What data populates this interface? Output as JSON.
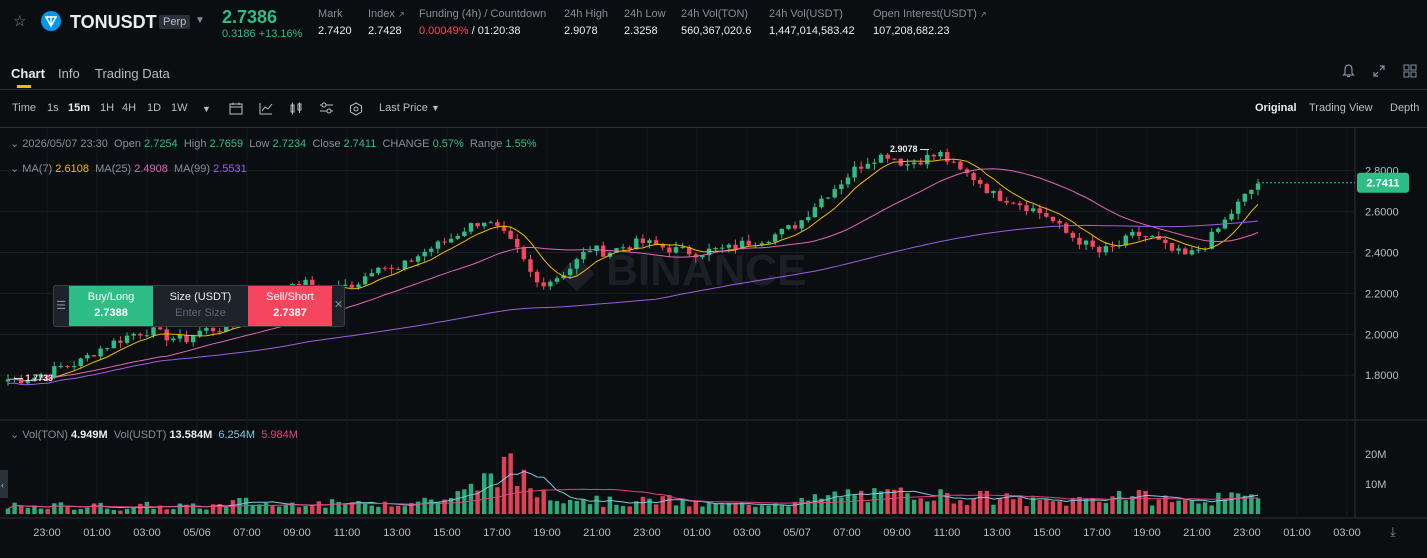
{
  "header": {
    "symbol": "TONUSDT",
    "badge": "Perp",
    "last_price": "2.7386",
    "change": "0.3186 +13.16%",
    "stats": [
      {
        "label": "Mark",
        "value": "2.7420"
      },
      {
        "label": "Index",
        "value": "2.7428"
      },
      {
        "label": "Funding (4h) / Countdown",
        "value_funding": "0.00049%",
        "value_countdown": "/ 01:20:38"
      },
      {
        "label": "24h High",
        "value": "2.9078"
      },
      {
        "label": "24h Low",
        "value": "2.3258"
      },
      {
        "label": "24h Vol(TON)",
        "value": "560,367,020.6"
      },
      {
        "label": "24h Vol(USDT)",
        "value": "1,447,014,583.42"
      },
      {
        "label": "Open Interest(USDT)",
        "value": "107,208,682.23"
      }
    ]
  },
  "tabs": [
    "Chart",
    "Info",
    "Trading Data"
  ],
  "toolbar": {
    "intervals": [
      "Time",
      "1s",
      "15m",
      "1H",
      "4H",
      "1D",
      "1W"
    ],
    "active_interval": "15m",
    "price_type": "Last Price",
    "views": [
      "Original",
      "Trading View",
      "Depth"
    ]
  },
  "legend": {
    "datetime": "2026/05/07 23:30",
    "open_label": "Open",
    "open": "2.7254",
    "high_label": "High",
    "high": "2.7659",
    "low_label": "Low",
    "low": "2.7234",
    "close_label": "Close",
    "close": "2.7411",
    "change_label": "CHANGE",
    "change": "0.57%",
    "range_label": "Range",
    "range": "1.55%",
    "ma7_label": "MA(7)",
    "ma7": "2.6108",
    "ma25_label": "MA(25)",
    "ma25": "2.4908",
    "ma99_label": "MA(99)",
    "ma99": "2.5531",
    "vol_ton_label": "Vol(TON)",
    "vol_ton": "4.949M",
    "vol_usdt_label": "Vol(USDT)",
    "vol_usdt": "13.584M",
    "vol_ma1": "6.254M",
    "vol_ma2": "5.984M"
  },
  "trade_panel": {
    "buy_label": "Buy/Long",
    "buy_price": "2.7388",
    "size_label": "Size (USDT)",
    "size_placeholder": "Enter Size",
    "sell_label": "Sell/Short",
    "sell_price": "2.7387"
  },
  "colors": {
    "up": "#2ebd85",
    "down": "#f6465d",
    "ma7": "#f0b90b",
    "ma25": "#e066b4",
    "ma99": "#9b5de5",
    "volma1": "#7ec8e3",
    "volma2": "#e0427a"
  },
  "chart_data": {
    "type": "candlestick",
    "y_axis_labels": [
      "2.8000",
      "2.6000",
      "2.4000",
      "2.2000",
      "2.0000",
      "1.8000"
    ],
    "ylim": [
      1.63,
      2.95
    ],
    "volume_axis_labels": [
      "20M",
      "10M"
    ],
    "x_labels": [
      "23:00",
      "01:00",
      "03:00",
      "05/06",
      "07:00",
      "09:00",
      "11:00",
      "13:00",
      "15:00",
      "17:00",
      "19:00",
      "21:00",
      "23:00",
      "01:00",
      "03:00",
      "05/07",
      "07:00",
      "09:00",
      "11:00",
      "13:00",
      "15:00",
      "17:00",
      "19:00",
      "21:00",
      "23:00",
      "01:00",
      "03:00"
    ],
    "high_marker": "2.9078",
    "low_marker": "1.7733",
    "current_price_tag": "2.7411",
    "close_path": [
      1.78,
      1.78,
      1.8,
      1.84,
      1.86,
      1.92,
      1.96,
      2.0,
      2.02,
      1.99,
      1.97,
      2.02,
      2.03,
      2.06,
      2.1,
      2.15,
      2.22,
      2.25,
      2.2,
      2.23,
      2.26,
      2.35,
      2.3,
      2.37,
      2.42,
      2.46,
      2.52,
      2.56,
      2.5,
      2.4,
      2.25,
      2.27,
      2.33,
      2.42,
      2.4,
      2.43,
      2.45,
      2.43,
      2.41,
      2.4,
      2.41,
      2.42,
      2.45,
      2.47,
      2.5,
      2.55,
      2.65,
      2.72,
      2.8,
      2.86,
      2.88,
      2.83,
      2.86,
      2.88,
      2.8,
      2.76,
      2.68,
      2.66,
      2.62,
      2.58,
      2.5,
      2.45,
      2.4,
      2.43,
      2.49,
      2.47,
      2.41,
      2.38,
      2.44,
      2.54,
      2.65,
      2.74
    ],
    "volume_path": [
      3,
      2,
      2,
      3,
      2,
      3,
      2,
      2,
      3,
      2,
      3,
      2,
      3,
      4,
      4,
      3,
      3,
      5,
      3,
      4,
      3,
      4,
      4,
      4,
      5,
      5,
      7,
      11,
      17,
      12,
      8,
      7,
      6,
      5,
      4,
      4,
      4,
      5,
      4,
      3,
      3,
      3,
      3,
      4,
      4,
      4,
      5,
      6,
      7,
      6,
      6,
      7,
      8,
      6,
      5,
      6,
      5,
      5,
      4,
      4,
      4,
      5,
      5,
      7,
      6,
      5,
      5,
      4,
      5,
      5,
      5,
      6
    ]
  }
}
